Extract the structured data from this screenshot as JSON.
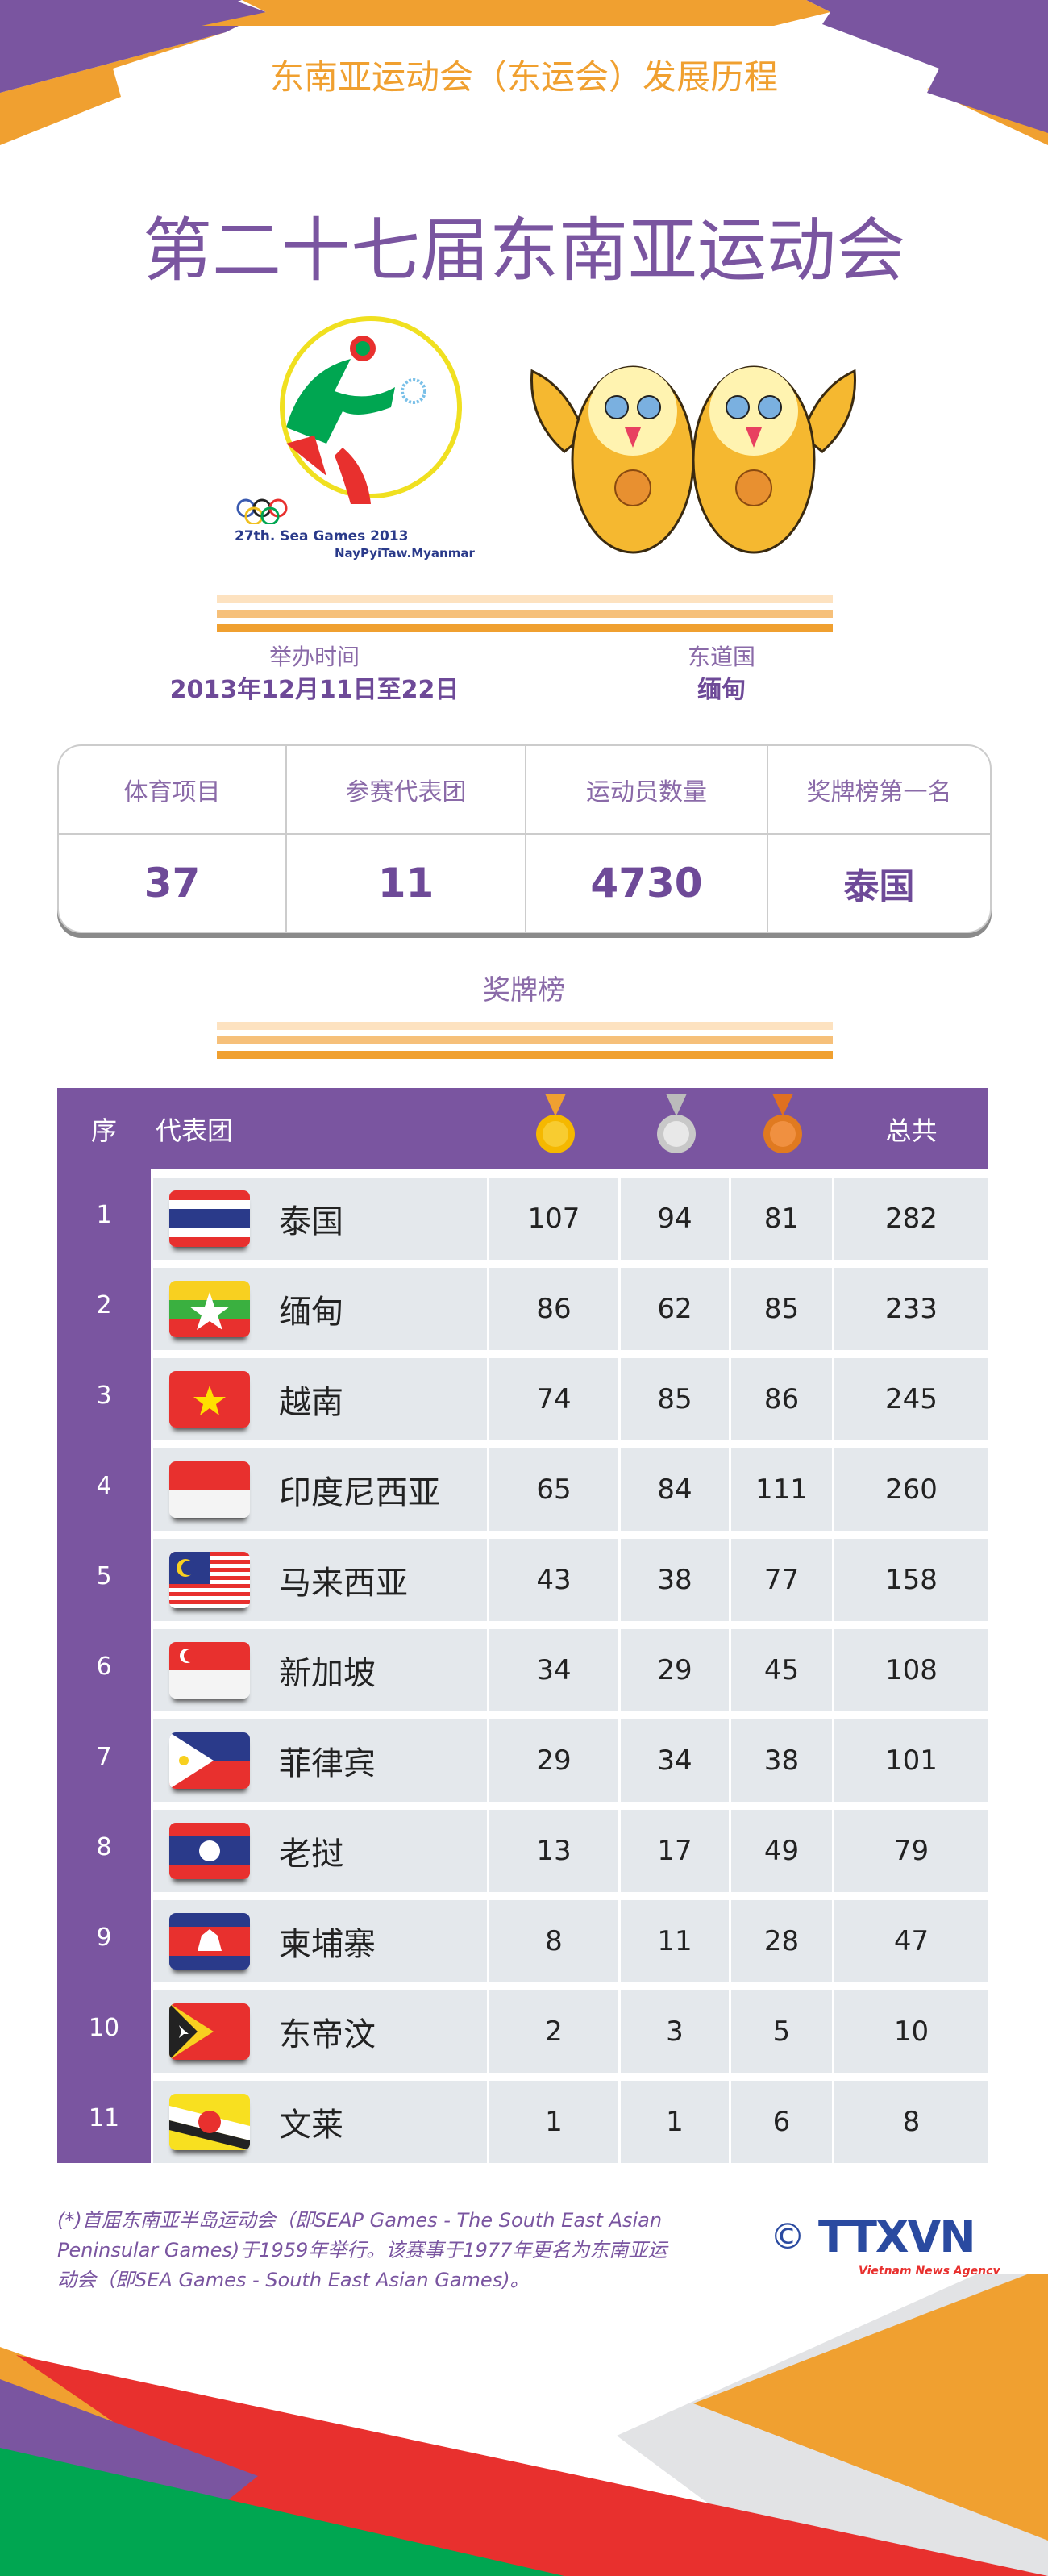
{
  "header": {
    "series_title": "东南亚运动会（东运会）发展历程",
    "main_title": "第二十七届东南亚运动会"
  },
  "logo": {
    "text1": "27th. Sea Games 2013",
    "text2": "NayPyiTaw.Myanmar"
  },
  "info": {
    "time_label": "举办时间",
    "time_value": "2013年12月11日至22日",
    "host_label": "东道国",
    "host_value": "缅甸"
  },
  "stats": {
    "headers": [
      "体育项目",
      "参赛代表团",
      "运动员数量",
      "奖牌榜第一名"
    ],
    "values": [
      "37",
      "11",
      "4730",
      "泰国"
    ]
  },
  "medal_title": "奖牌榜",
  "table": {
    "headers": {
      "seq": "序",
      "team": "代表团",
      "total": "总共"
    },
    "medal_icons": [
      "gold-medal-icon",
      "silver-medal-icon",
      "bronze-medal-icon"
    ],
    "rows": [
      {
        "seq": "1",
        "team": "泰国",
        "flag": "thailand",
        "gold": "107",
        "silver": "94",
        "bronze": "81",
        "total": "282"
      },
      {
        "seq": "2",
        "team": "缅甸",
        "flag": "myanmar",
        "gold": "86",
        "silver": "62",
        "bronze": "85",
        "total": "233"
      },
      {
        "seq": "3",
        "team": "越南",
        "flag": "vietnam",
        "gold": "74",
        "silver": "85",
        "bronze": "86",
        "total": "245"
      },
      {
        "seq": "4",
        "team": "印度尼西亚",
        "flag": "indonesia",
        "gold": "65",
        "silver": "84",
        "bronze": "111",
        "total": "260"
      },
      {
        "seq": "5",
        "team": "马来西亚",
        "flag": "malaysia",
        "gold": "43",
        "silver": "38",
        "bronze": "77",
        "total": "158"
      },
      {
        "seq": "6",
        "team": "新加坡",
        "flag": "singapore",
        "gold": "34",
        "silver": "29",
        "bronze": "45",
        "total": "108"
      },
      {
        "seq": "7",
        "team": "菲律宾",
        "flag": "philippines",
        "gold": "29",
        "silver": "34",
        "bronze": "38",
        "total": "101"
      },
      {
        "seq": "8",
        "team": "老挝",
        "flag": "laos",
        "gold": "13",
        "silver": "17",
        "bronze": "49",
        "total": "79"
      },
      {
        "seq": "9",
        "team": "柬埔寨",
        "flag": "cambodia",
        "gold": "8",
        "silver": "11",
        "bronze": "28",
        "total": "47"
      },
      {
        "seq": "10",
        "team": "东帝汶",
        "flag": "timor-leste",
        "gold": "2",
        "silver": "3",
        "bronze": "5",
        "total": "10"
      },
      {
        "seq": "11",
        "team": "文莱",
        "flag": "brunei",
        "gold": "1",
        "silver": "1",
        "bronze": "6",
        "total": "8"
      }
    ]
  },
  "footnote": "(*)首届东南亚半岛运动会（即SEAP Games - The South East Asian Peninsular Games)于1959年举行。该赛事于1977年更名为东南亚运动会（即SEA Games - South East Asian Games)。",
  "credit": {
    "copyright": "©",
    "brand": "TTXVN",
    "sub": "Vietnam News Agency"
  },
  "colors": {
    "purple": "#7a55a0",
    "orange": "#f0a030",
    "red": "#e8302e",
    "green": "#00a651",
    "gray": "#e4e8ec"
  }
}
